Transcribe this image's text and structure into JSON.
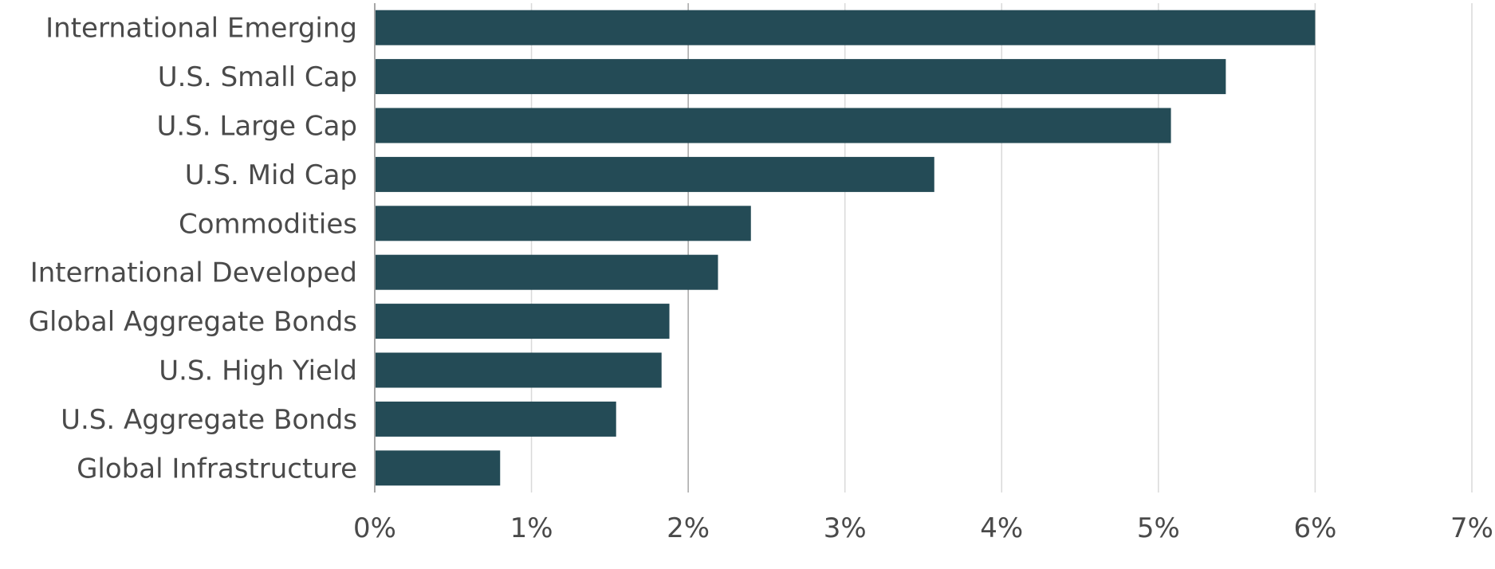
{
  "chart_data": {
    "type": "bar",
    "orientation": "horizontal",
    "categories": [
      "International Emerging",
      "U.S. Small Cap",
      "U.S. Large Cap",
      "U.S. Mid Cap",
      "Commodities",
      "International Developed",
      "Global Aggregate Bonds",
      "U.S. High Yield",
      "U.S. Aggregate Bonds",
      "Global Infrastructure"
    ],
    "values": [
      6.0,
      5.43,
      5.08,
      3.57,
      2.4,
      2.19,
      1.88,
      1.83,
      1.54,
      0.8
    ],
    "xlim": [
      0,
      7
    ],
    "x_ticks": [
      0,
      1,
      2,
      3,
      4,
      5,
      6,
      7
    ],
    "x_tick_labels": [
      "0%",
      "1%",
      "2%",
      "3%",
      "4%",
      "5%",
      "6%",
      "7%"
    ],
    "title": "",
    "xlabel": "",
    "ylabel": "",
    "grid": "vertical",
    "legend": "none",
    "colors": {
      "bar": "#244b56",
      "grid": "#d9d9d9",
      "axis": "#a6a6a6",
      "text": "#4a4a4a"
    }
  }
}
